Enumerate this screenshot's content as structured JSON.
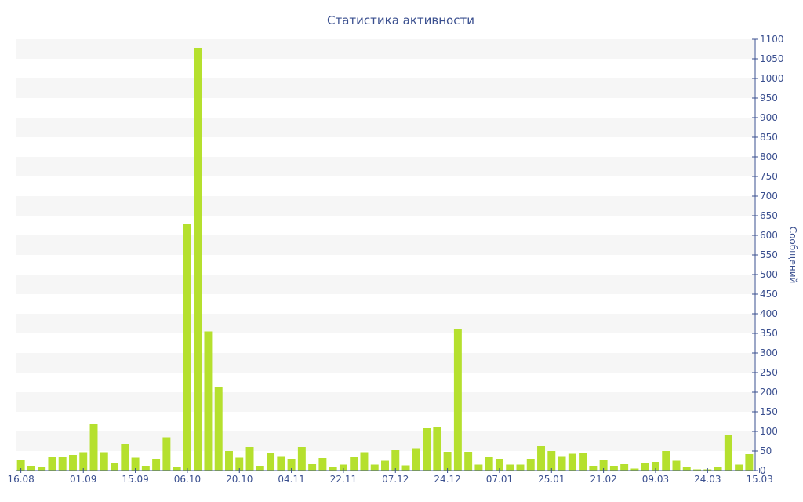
{
  "chart_data": {
    "type": "bar",
    "title": "Статистика активности",
    "xlabel": "",
    "ylabel": "Сообщений",
    "ylim": [
      0,
      1100
    ],
    "y_tick_step": 50,
    "y_axis_position": "right",
    "grid": "alternating horizontal bands",
    "x_tick_labels": [
      "16.08",
      "01.09",
      "15.09",
      "06.10",
      "20.10",
      "04.11",
      "22.11",
      "07.12",
      "24.12",
      "07.01",
      "25.01",
      "21.02",
      "09.03",
      "24.03",
      "15.03"
    ],
    "x_tick_bar_index": [
      0,
      6,
      11,
      16,
      21,
      26,
      31,
      36,
      41,
      46,
      51,
      56,
      61,
      66,
      71
    ],
    "values": [
      27,
      12,
      8,
      35,
      35,
      40,
      47,
      120,
      47,
      20,
      68,
      33,
      12,
      30,
      85,
      8,
      630,
      1078,
      355,
      212,
      50,
      33,
      60,
      12,
      45,
      37,
      30,
      60,
      18,
      32,
      10,
      15,
      35,
      47,
      15,
      25,
      52,
      13,
      57,
      108,
      110,
      48,
      362,
      48,
      15,
      35,
      30,
      15,
      15,
      30,
      63,
      50,
      37,
      43,
      45,
      12,
      26,
      12,
      17,
      5,
      20,
      22,
      50,
      25,
      8,
      3,
      3,
      10,
      90,
      15,
      42
    ],
    "colors": {
      "bar": "#b5e02e",
      "band": "#f6f6f6",
      "text": "#3a4f8f",
      "axis": "#3a4f8f"
    }
  }
}
